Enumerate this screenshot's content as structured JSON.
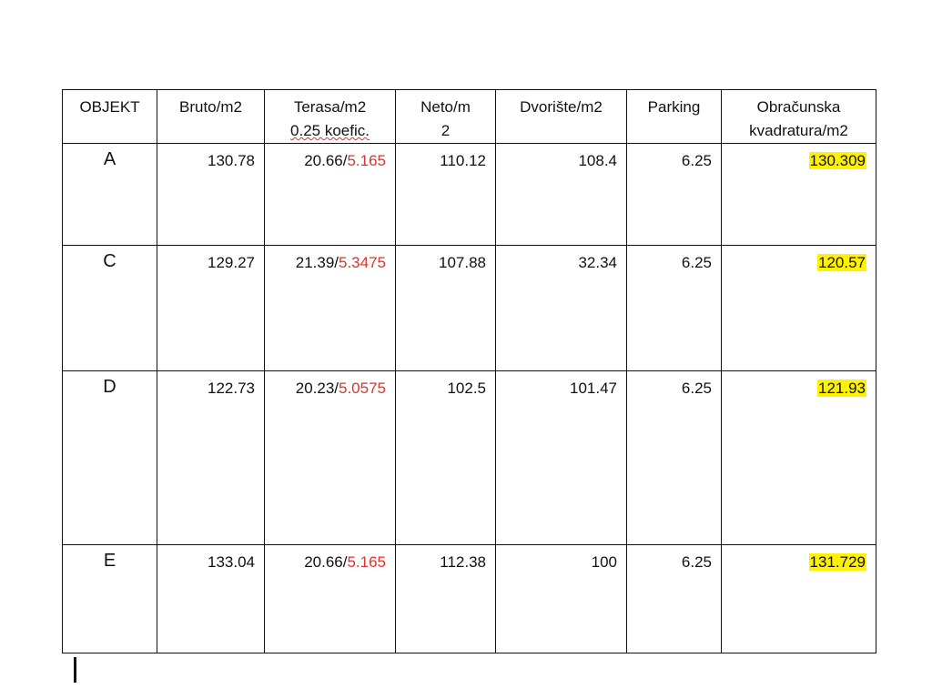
{
  "table": {
    "header": [
      [
        "OBJEKT"
      ],
      [
        "Bruto/m2"
      ],
      [
        "Terasa/m2",
        "0.25 koefic."
      ],
      [
        "Neto/m",
        "2"
      ],
      [
        "Dvorište/m2"
      ],
      [
        "Parking"
      ],
      [
        "Obračunska",
        "kvadratura/m2"
      ]
    ],
    "rows": [
      [
        "A",
        "130.78",
        [
          "20.66/",
          "5.165"
        ],
        "110.12",
        "108.4",
        "6.25",
        "130.309"
      ],
      [
        "C",
        "129.27",
        [
          "21.39/",
          "5.3475"
        ],
        "107.88",
        "32.34",
        "6.25",
        "120.57"
      ],
      [
        "D",
        "122.73",
        [
          "20.23/",
          "5.0575"
        ],
        "102.5",
        "101.47",
        "6.25",
        "121.93"
      ],
      [
        "E",
        "133.04",
        [
          "20.66/",
          "5.165"
        ],
        "112.38",
        "100",
        "6.25",
        "131.729"
      ]
    ]
  }
}
